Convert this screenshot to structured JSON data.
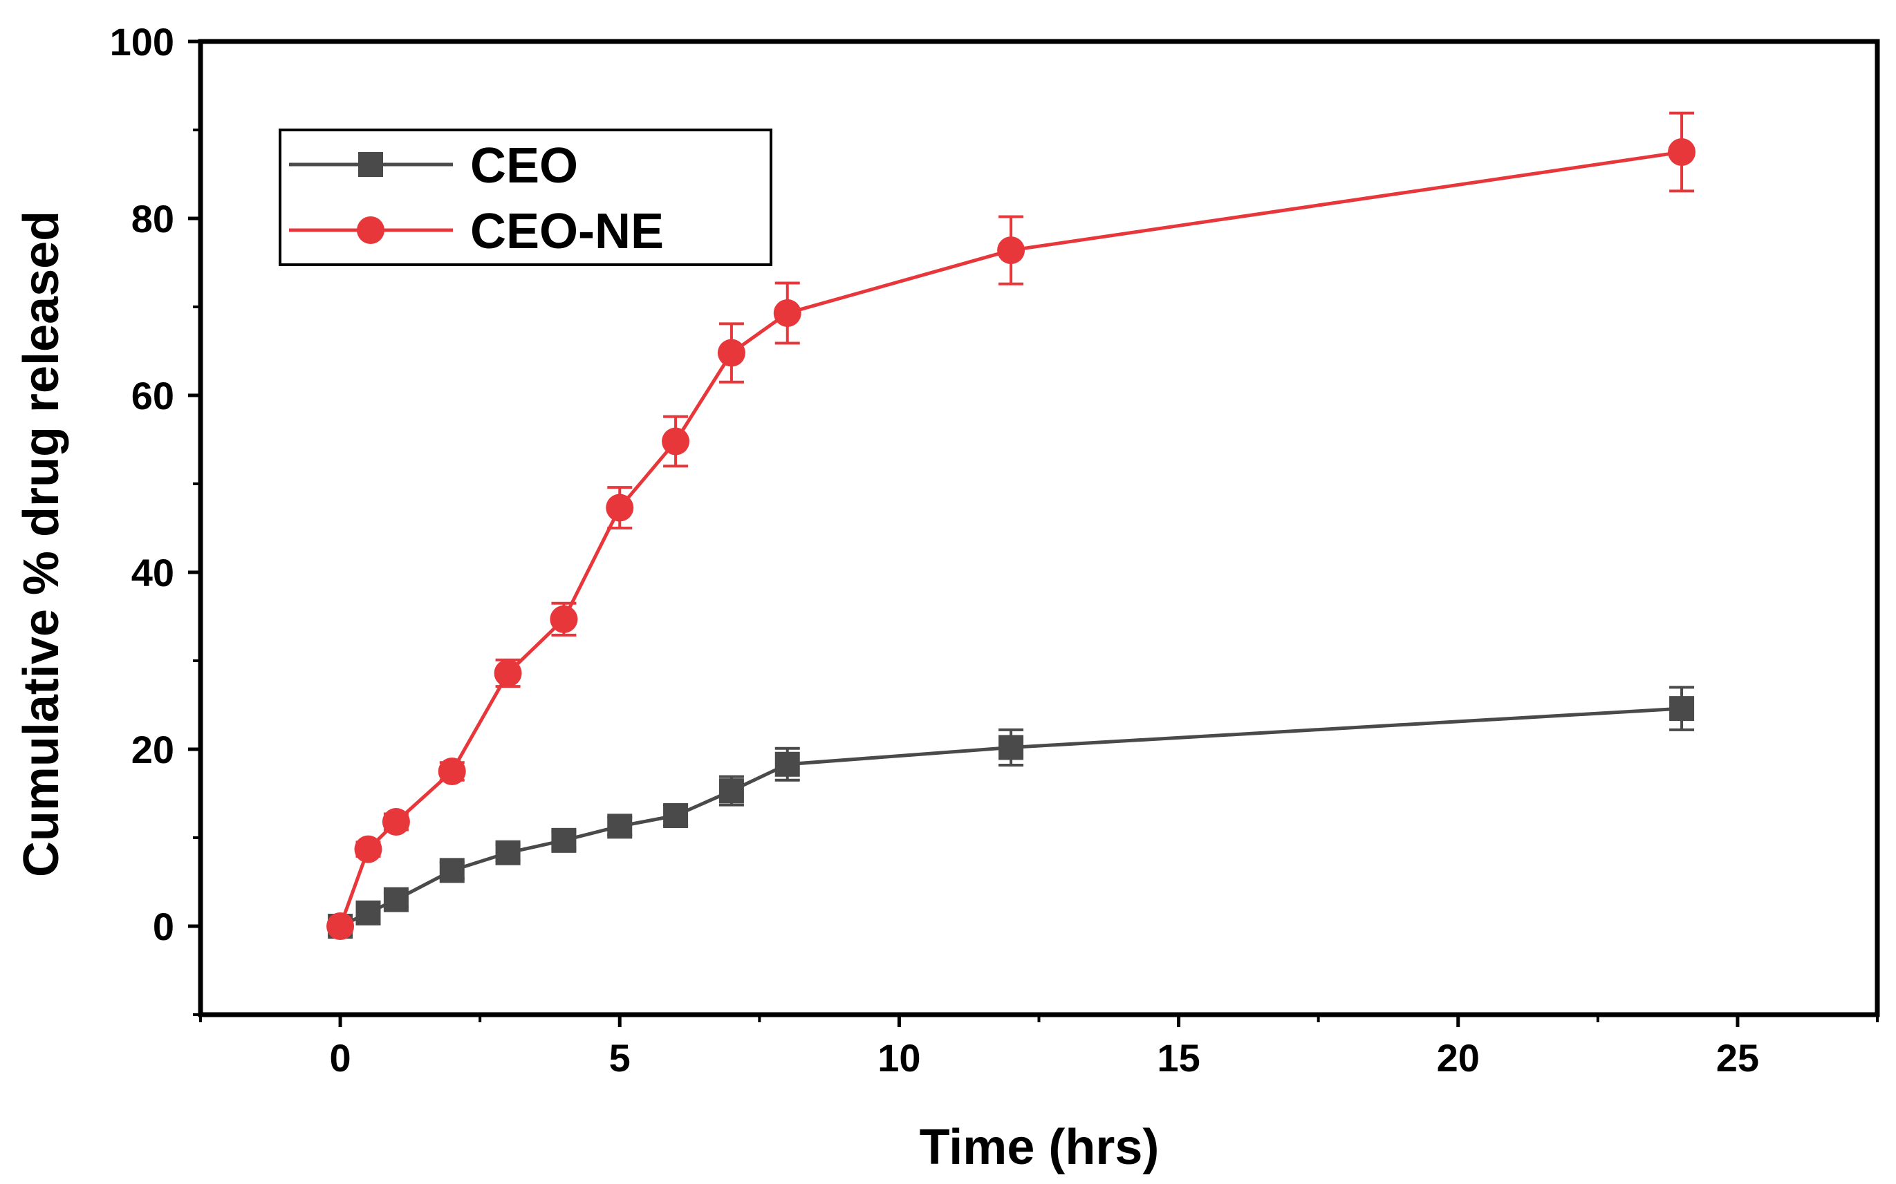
{
  "chart_data": {
    "type": "line",
    "title": "",
    "xlabel": "Time (hrs)",
    "ylabel": "Cumulative % drug released",
    "xlim": [
      -2.5,
      27.5
    ],
    "ylim": [
      -10,
      100
    ],
    "xticks": [
      0,
      5,
      10,
      15,
      20,
      25
    ],
    "yticks": [
      0,
      20,
      40,
      60,
      80,
      100
    ],
    "x_minor_step": 2.5,
    "y_minor_step": 10,
    "grid": false,
    "legend_position": "top-left",
    "series": [
      {
        "name": "CEO",
        "color": "#4a4a4a",
        "marker": "square",
        "x": [
          0,
          0.5,
          1,
          2,
          3,
          4,
          5,
          6,
          7,
          8,
          12,
          24
        ],
        "y": [
          0,
          1.5,
          3,
          6.3,
          8.3,
          9.7,
          11.3,
          12.5,
          15.3,
          18.3,
          20.2,
          24.6
        ],
        "err": [
          0.5,
          0.6,
          0.8,
          0.9,
          0.9,
          1.0,
          1.0,
          1.1,
          1.6,
          1.8,
          2.0,
          2.4
        ]
      },
      {
        "name": "CEO-NE",
        "color": "#e8373b",
        "marker": "circle",
        "x": [
          0,
          0.5,
          1,
          2,
          3,
          4,
          5,
          6,
          7,
          8,
          12,
          24
        ],
        "y": [
          0,
          8.7,
          11.8,
          17.5,
          28.6,
          34.7,
          47.3,
          54.8,
          64.8,
          69.3,
          76.4,
          87.5
        ],
        "err": [
          0.5,
          0.8,
          0.9,
          1.0,
          1.5,
          1.8,
          2.3,
          2.8,
          3.3,
          3.4,
          3.8,
          4.4
        ]
      }
    ]
  }
}
